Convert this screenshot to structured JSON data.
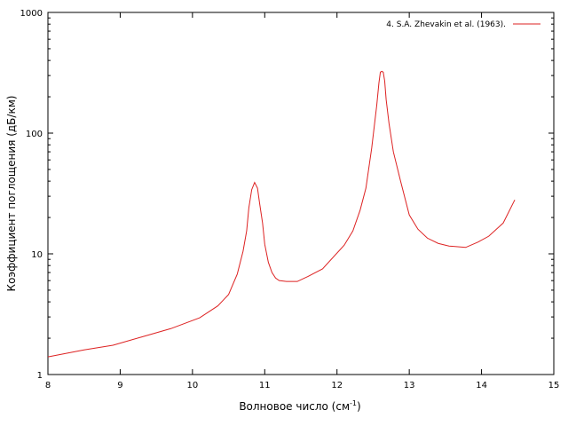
{
  "chart_data": {
    "type": "line",
    "title": "",
    "xlabel": "Волновое число (см",
    "xlabel_superscript": "-1",
    "xlabel_suffix": ")",
    "ylabel": "Коэффициент поглощения (дБ/км)",
    "xlim": [
      8,
      15
    ],
    "ylim": [
      1,
      1000
    ],
    "yscale": "log",
    "grid": false,
    "legend_position": "top-right",
    "x_ticks": [
      8,
      9,
      10,
      11,
      12,
      13,
      14,
      15
    ],
    "x_tick_labels": [
      "8",
      "9",
      "10",
      "11",
      "12",
      "13",
      "14",
      "15"
    ],
    "y_ticks": [
      1,
      10,
      100,
      1000
    ],
    "y_tick_labels": [
      "1",
      "10",
      "100",
      "1000"
    ],
    "series": [
      {
        "name": "4. S.A. Zhevakin et al. (1963).",
        "color": "#dd2222",
        "x": [
          8.0,
          8.5,
          8.9,
          9.3,
          9.7,
          10.1,
          10.35,
          10.5,
          10.62,
          10.7,
          10.75,
          10.78,
          10.82,
          10.86,
          10.88,
          10.9,
          10.93,
          10.97,
          11.0,
          11.05,
          11.1,
          11.15,
          11.2,
          11.3,
          11.45,
          11.6,
          11.8,
          12.1,
          12.22,
          12.32,
          12.4,
          12.48,
          12.55,
          12.58,
          12.6,
          12.62,
          12.64,
          12.66,
          12.68,
          12.72,
          12.78,
          12.88,
          13.0,
          13.12,
          13.25,
          13.4,
          13.55,
          13.78,
          13.95,
          14.1,
          14.3,
          14.46
        ],
        "y": [
          1.4,
          1.6,
          1.75,
          2.05,
          2.4,
          2.95,
          3.7,
          4.6,
          6.8,
          10.5,
          15.5,
          24,
          34,
          39,
          37,
          35,
          26,
          18,
          12,
          8.5,
          7.0,
          6.3,
          6.0,
          5.9,
          5.9,
          6.5,
          7.5,
          11.8,
          15.5,
          23,
          35,
          75,
          170,
          260,
          320,
          325,
          320,
          270,
          190,
          120,
          70,
          40,
          21,
          16,
          13.5,
          12.2,
          11.6,
          11.3,
          12.5,
          14,
          18,
          28
        ]
      }
    ]
  }
}
